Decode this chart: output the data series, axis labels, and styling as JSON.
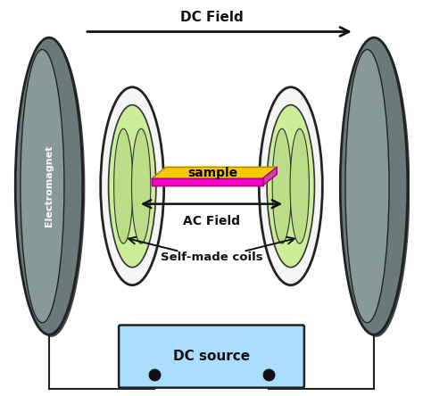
{
  "bg_color": "#ffffff",
  "magnet_fill": "#6a7a7a",
  "magnet_inner": "#889999",
  "magnet_edge": "#222222",
  "coil_outer_fill": "#f5f5f5",
  "coil_outer_edge": "#222222",
  "coil_green_fill": "#ccee99",
  "coil_green_edge": "#333333",
  "coil_lobe_fill": "#bbdd88",
  "coil_lobe_edge": "#333333",
  "sample_top": "#f5c800",
  "sample_top_edge": "#aa8800",
  "sample_front": "#ff00cc",
  "sample_front_edge": "#aa0088",
  "sample_right": "#cc44aa",
  "dc_source_fill": "#aaddff",
  "dc_source_edge": "#222222",
  "wire_color": "#222222",
  "arrow_color": "#111111",
  "text_color": "#111111",
  "dc_field_label": "DC Field",
  "ac_field_label": "AC Field",
  "self_made_label": "Self-made coils",
  "sample_label": "sample",
  "dc_source_label": "DC source",
  "electromagnet_label": "Electromagnet",
  "figw": 4.74,
  "figh": 4.44,
  "dpi": 100
}
